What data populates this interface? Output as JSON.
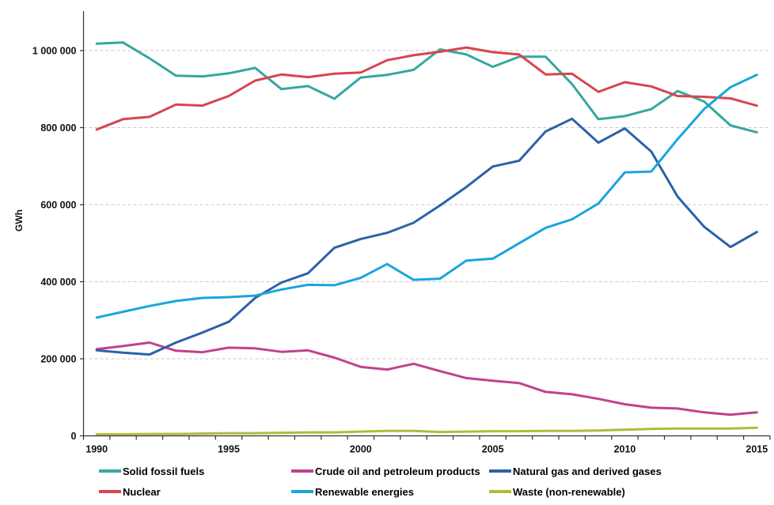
{
  "page": {
    "background": "#ffffff",
    "unit_label": "GWh"
  },
  "chart_data": {
    "type": "line",
    "title": "",
    "xlabel": "",
    "ylabel": "GWh",
    "x": [
      1990,
      1991,
      1992,
      1993,
      1994,
      1995,
      1996,
      1997,
      1998,
      1999,
      2000,
      2001,
      2002,
      2003,
      2004,
      2005,
      2006,
      2007,
      2008,
      2009,
      2010,
      2011,
      2012,
      2013,
      2014,
      2015
    ],
    "x_major_tick_labels": [
      "1990",
      "1995",
      "2000",
      "2005",
      "2010",
      "2015"
    ],
    "x_major_tick_years": [
      1990,
      1995,
      2000,
      2005,
      2010,
      2015
    ],
    "y_ticks": [
      {
        "value": 0,
        "label": "0"
      },
      {
        "value": 200000,
        "label": "200 000"
      },
      {
        "value": 400000,
        "label": "400 000"
      },
      {
        "value": 600000,
        "label": "600 000"
      },
      {
        "value": 800000,
        "label": "800 000"
      },
      {
        "value": 1000000,
        "label": "1 000 000"
      }
    ],
    "ylim": [
      0,
      1100000
    ],
    "grid": "horizontal-dashed",
    "legend_position": "bottom",
    "series": [
      {
        "name": "Solid fossil fuels",
        "color": "#36a7a0",
        "values": [
          1018000,
          1021000,
          980000,
          935000,
          933000,
          941000,
          955000,
          900000,
          908000,
          875000,
          930000,
          937000,
          950000,
          1003000,
          990000,
          958000,
          984000,
          984000,
          913000,
          822000,
          830000,
          848000,
          895000,
          868000,
          806000,
          788000
        ]
      },
      {
        "name": "Crude oil and petroleum products",
        "color": "#c2418f",
        "values": [
          225000,
          233000,
          242000,
          221000,
          217000,
          229000,
          227000,
          218000,
          222000,
          203000,
          179000,
          172000,
          187000,
          168000,
          150000,
          143000,
          137000,
          114000,
          108000,
          96000,
          82000,
          73000,
          71000,
          61000,
          55000,
          61000
        ]
      },
      {
        "name": "Natural gas and derived gases",
        "color": "#2d61a8",
        "values": [
          222000,
          216000,
          211000,
          242000,
          268000,
          296000,
          358000,
          398000,
          422000,
          488000,
          511000,
          527000,
          553000,
          598000,
          646000,
          699000,
          714000,
          790000,
          823000,
          761000,
          798000,
          738000,
          621000,
          543000,
          490000,
          529000
        ]
      },
      {
        "name": "Nuclear",
        "color": "#d8444e",
        "values": [
          795000,
          822000,
          828000,
          860000,
          857000,
          882000,
          922000,
          938000,
          931000,
          940000,
          943000,
          975000,
          988000,
          997000,
          1008000,
          996000,
          990000,
          938000,
          940000,
          893000,
          918000,
          907000,
          882000,
          880000,
          876000,
          857000
        ]
      },
      {
        "name": "Renewable energies",
        "color": "#19a5de",
        "values": [
          307000,
          322000,
          337000,
          350000,
          358000,
          360000,
          364000,
          380000,
          392000,
          391000,
          410000,
          446000,
          405000,
          408000,
          455000,
          460000,
          500000,
          540000,
          562000,
          603000,
          684000,
          686000,
          770000,
          848000,
          905000,
          937000
        ]
      },
      {
        "name": "Waste (non-renewable)",
        "color": "#b2bb36",
        "values": [
          4000,
          4000,
          5000,
          5000,
          6000,
          7000,
          7000,
          8000,
          9000,
          9000,
          11000,
          13000,
          13000,
          10000,
          11000,
          12000,
          12000,
          13000,
          13000,
          14000,
          16000,
          18000,
          19000,
          19000,
          19000,
          21000
        ]
      }
    ],
    "legend_rows": [
      [
        "Solid fossil fuels",
        "Crude oil and petroleum products",
        "Natural gas and derived gases"
      ],
      [
        "Nuclear",
        "Renewable energies",
        "Waste (non-renewable)"
      ]
    ]
  }
}
